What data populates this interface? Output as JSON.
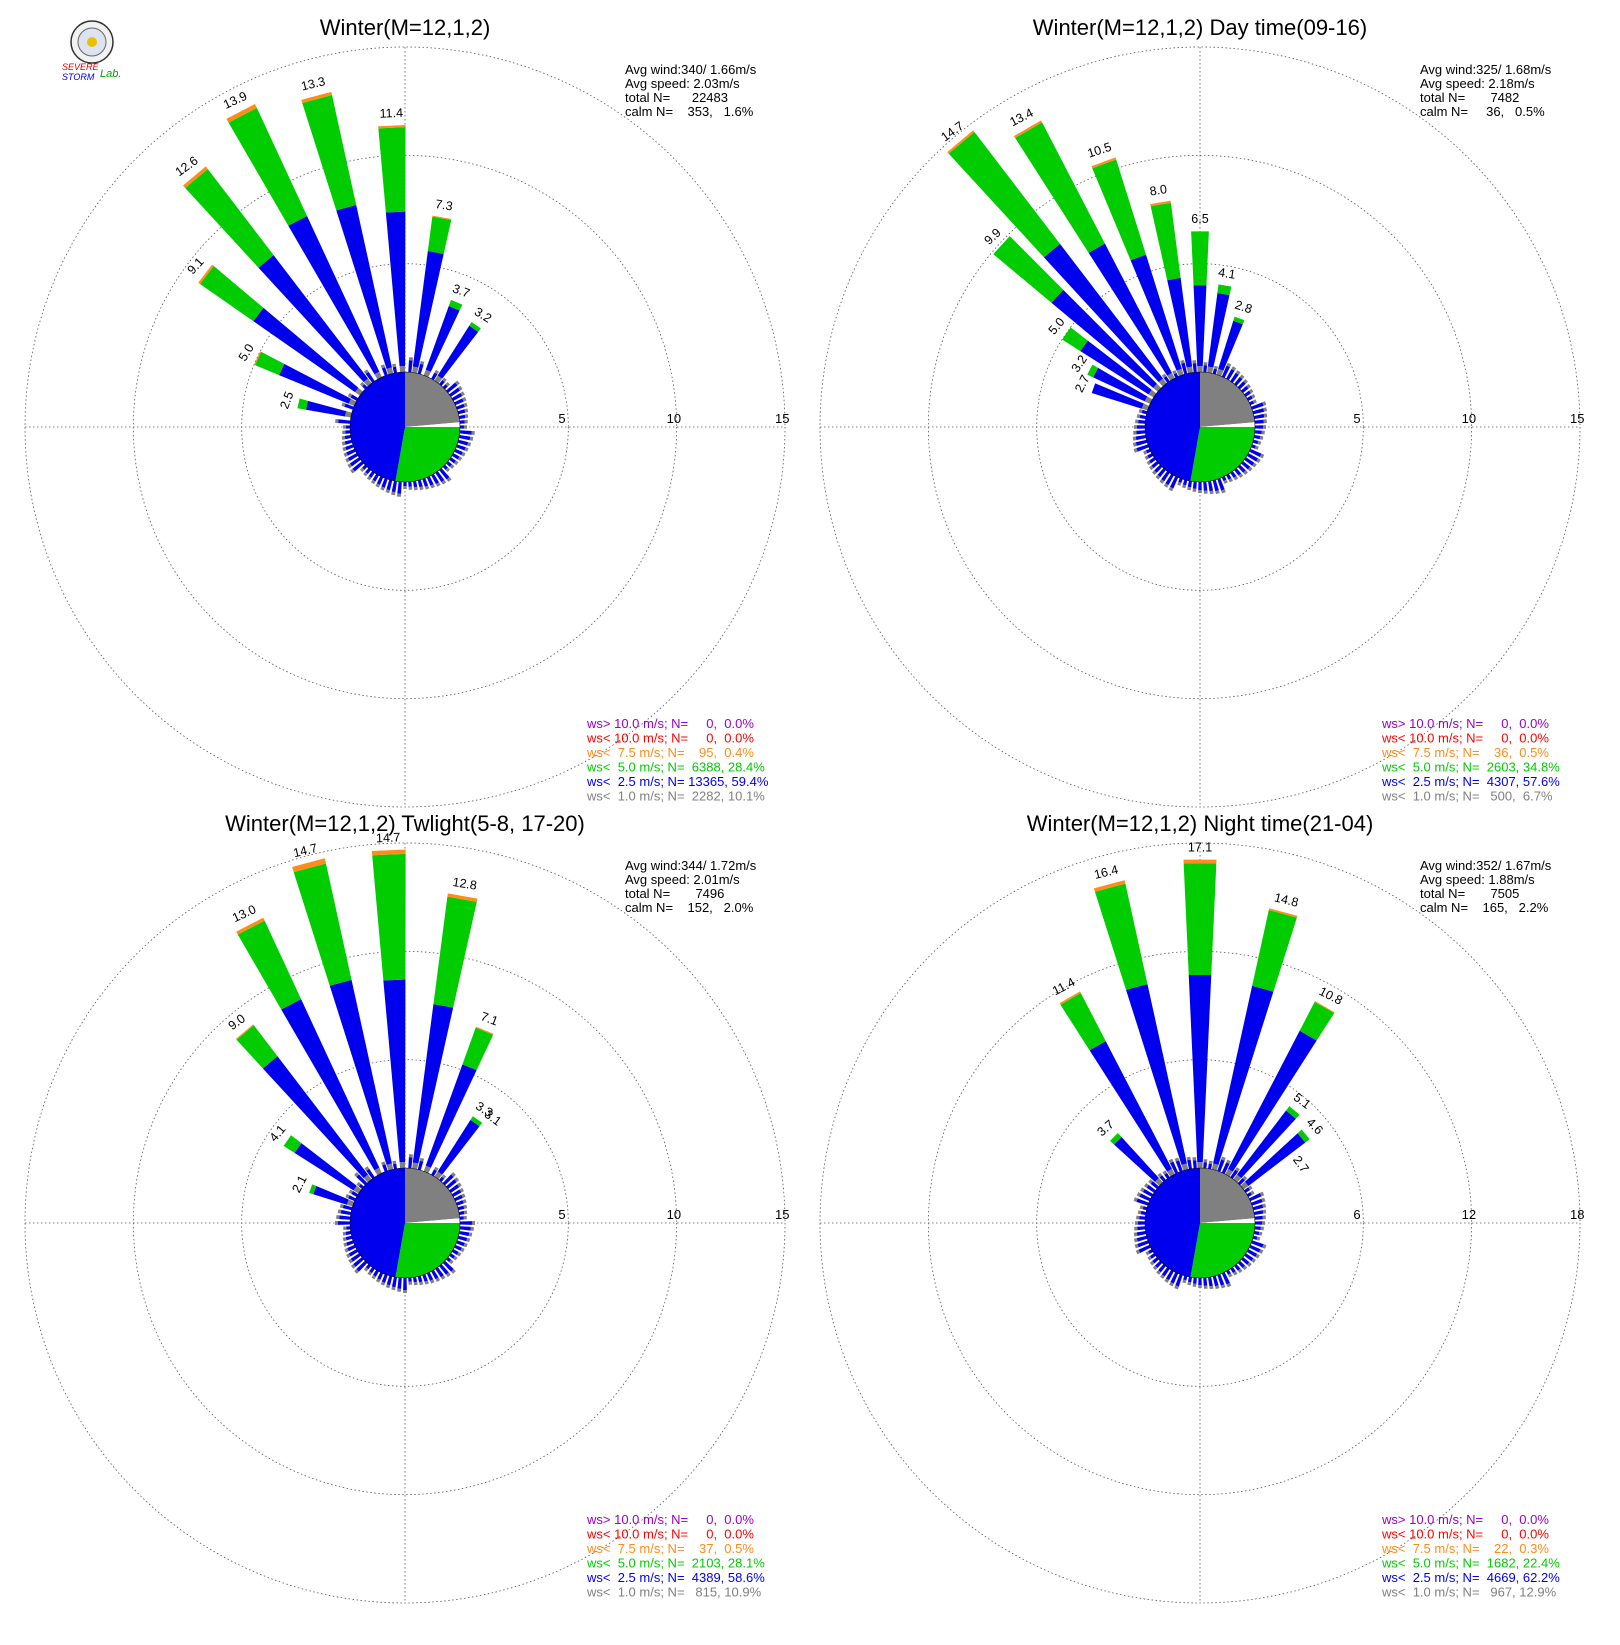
{
  "logo": {
    "top_text": "SEVERE",
    "bottom_text": "STORM",
    "lab_text": "Lab."
  },
  "colors": {
    "gt10": "#9900cc",
    "lt10": "#ff0000",
    "lt7_5": "#ff8c1a",
    "lt5": "#00cc00",
    "lt2_5": "#0000ee",
    "lt1": "#808080",
    "grid": "#555555"
  },
  "chart_data": [
    {
      "type": "windrose",
      "title": "Winter(M=12,1,2)",
      "stats": {
        "avg_wind": "Avg wind:340/ 1.66m/s",
        "avg_speed": "Avg speed: 2.03m/s",
        "total": "total N=      22483",
        "calm": "calm N=    353,   1.6%"
      },
      "rings": [
        5,
        10,
        15
      ],
      "ring_labels": [
        "5",
        "10",
        "15"
      ],
      "directions": [
        282.5,
        295,
        307.5,
        320,
        332.5,
        345,
        357.5,
        10,
        22.5,
        35
      ],
      "bars": [
        {
          "value": 2.5,
          "label": "2.5",
          "green": 0.4,
          "orange": 0.0
        },
        {
          "value": 5.0,
          "label": "5.0",
          "green": 1.2,
          "orange": 0.05
        },
        {
          "value": 9.1,
          "label": "9.1",
          "green": 3.0,
          "orange": 0.1
        },
        {
          "value": 12.6,
          "label": "12.6",
          "green": 5.0,
          "orange": 0.15
        },
        {
          "value": 13.9,
          "label": "13.9",
          "green": 5.5,
          "orange": 0.2
        },
        {
          "value": 13.3,
          "label": "13.3",
          "green": 5.2,
          "orange": 0.15
        },
        {
          "value": 11.4,
          "label": "11.4",
          "green": 3.9,
          "orange": 0.1
        },
        {
          "value": 7.3,
          "label": "7.3",
          "green": 1.6,
          "orange": 0.05
        },
        {
          "value": 3.7,
          "label": "3.7",
          "green": 0.3,
          "orange": 0.0
        },
        {
          "value": 3.2,
          "label": "3.2",
          "green": 0.2,
          "orange": 0.0
        }
      ],
      "legend": [
        {
          "text": "ws> 10.0 m/s; N=     0,  0.0%",
          "color": "#9900cc"
        },
        {
          "text": "ws< 10.0 m/s; N=     0,  0.0%",
          "color": "#ff0000"
        },
        {
          "text": "ws<  7.5 m/s; N=    95,  0.4%",
          "color": "#ff8c1a"
        },
        {
          "text": "ws<  5.0 m/s; N=  6388, 28.4%",
          "color": "#00cc00"
        },
        {
          "text": "ws<  2.5 m/s; N= 13365, 59.4%",
          "color": "#0000ee"
        },
        {
          "text": "ws<  1.0 m/s; N=  2282, 10.1%",
          "color": "#808080"
        }
      ]
    },
    {
      "type": "windrose",
      "title": "Winter(M=12,1,2) Day time(09-16)",
      "stats": {
        "avg_wind": "Avg wind:325/ 1.68m/s",
        "avg_speed": "Avg speed: 2.18m/s",
        "total": "total N=       7482",
        "calm": "calm N=     36,   0.5%"
      },
      "rings": [
        5,
        10,
        15
      ],
      "ring_labels": [
        "5",
        "10",
        "15"
      ],
      "directions": [
        290,
        297.5,
        305,
        312.5,
        320,
        330,
        340,
        350,
        0,
        10,
        20
      ],
      "bars": [
        {
          "value": 2.7,
          "label": "2.7",
          "green": 0.0,
          "orange": 0.0
        },
        {
          "value": 3.2,
          "label": "3.2",
          "green": 0.3,
          "orange": 0.0
        },
        {
          "value": 5.0,
          "label": "5.0",
          "green": 1.0,
          "orange": 0.0
        },
        {
          "value": 9.9,
          "label": "9.9",
          "green": 3.5,
          "orange": 0.0
        },
        {
          "value": 14.7,
          "label": "14.7",
          "green": 6.5,
          "orange": 0.1
        },
        {
          "value": 13.4,
          "label": "13.4",
          "green": 6.3,
          "orange": 0.1
        },
        {
          "value": 10.5,
          "label": "10.5",
          "green": 4.6,
          "orange": 0.1
        },
        {
          "value": 8.0,
          "label": "8.0",
          "green": 3.5,
          "orange": 0.1
        },
        {
          "value": 6.5,
          "label": "6.5",
          "green": 2.5,
          "orange": 0.0
        },
        {
          "value": 4.1,
          "label": "4.1",
          "green": 0.4,
          "orange": 0.0
        },
        {
          "value": 2.8,
          "label": "2.8",
          "green": 0.2,
          "orange": 0.0
        }
      ],
      "legend": [
        {
          "text": "ws> 10.0 m/s; N=     0,  0.0%",
          "color": "#9900cc"
        },
        {
          "text": "ws< 10.0 m/s; N=     0,  0.0%",
          "color": "#ff0000"
        },
        {
          "text": "ws<  7.5 m/s; N=    36,  0.5%",
          "color": "#ff8c1a"
        },
        {
          "text": "ws<  5.0 m/s; N=  2603, 34.8%",
          "color": "#00cc00"
        },
        {
          "text": "ws<  2.5 m/s; N=  4307, 57.6%",
          "color": "#0000ee"
        },
        {
          "text": "ws<  1.0 m/s; N=   500,  6.7%",
          "color": "#808080"
        }
      ]
    },
    {
      "type": "windrose",
      "title": "Winter(M=12,1,2) Twlight(5-8, 17-20)",
      "stats": {
        "avg_wind": "Avg wind:344/ 1.72m/s",
        "avg_speed": "Avg speed: 2.01m/s",
        "total": "total N=       7496",
        "calm": "calm N=    152,   2.0%"
      },
      "rings": [
        5,
        10,
        15
      ],
      "ring_labels": [
        "5",
        "10",
        "15"
      ],
      "directions": [
        290,
        305,
        320,
        332.5,
        345,
        357.5,
        10,
        22.5,
        35
      ],
      "bars": [
        {
          "value": 2.1,
          "label": "2.1",
          "green": 0.2,
          "orange": 0.0
        },
        {
          "value": 4.1,
          "label": "4.1",
          "green": 0.6,
          "orange": 0.0
        },
        {
          "value": 9.0,
          "label": "9.0",
          "green": 1.8,
          "orange": 0.05
        },
        {
          "value": 13.0,
          "label": "13.0",
          "green": 4.0,
          "orange": 0.15
        },
        {
          "value": 14.7,
          "label": "14.7",
          "green": 5.5,
          "orange": 0.25
        },
        {
          "value": 14.7,
          "label": "14.7",
          "green": 5.8,
          "orange": 0.2
        },
        {
          "value": 12.8,
          "label": "12.8",
          "green": 5.0,
          "orange": 0.15
        },
        {
          "value": 7.1,
          "label": "7.1",
          "green": 1.8,
          "orange": 0.05
        },
        {
          "value": 3.3,
          "label": "3.3",
          "green": 0.2,
          "orange": 0.0
        }
      ],
      "extra_labels": [
        {
          "text": "3.1",
          "angle": 40,
          "r": 3.6
        }
      ],
      "legend": [
        {
          "text": "ws> 10.0 m/s; N=     0,  0.0%",
          "color": "#9900cc"
        },
        {
          "text": "ws< 10.0 m/s; N=     0,  0.0%",
          "color": "#ff0000"
        },
        {
          "text": "ws<  7.5 m/s; N=    37,  0.5%",
          "color": "#ff8c1a"
        },
        {
          "text": "ws<  5.0 m/s; N=  2103, 28.1%",
          "color": "#00cc00"
        },
        {
          "text": "ws<  2.5 m/s; N=  4389, 58.6%",
          "color": "#0000ee"
        },
        {
          "text": "ws<  1.0 m/s; N=   815, 10.9%",
          "color": "#808080"
        }
      ]
    },
    {
      "type": "windrose",
      "title": "Winter(M=12,1,2) Night time(21-04)",
      "stats": {
        "avg_wind": "Avg wind:352/ 1.67m/s",
        "avg_speed": "Avg speed: 1.88m/s",
        "total": "total N=       7505",
        "calm": "calm N=    165,   2.2%"
      },
      "rings": [
        6,
        12,
        18
      ],
      "ring_labels": [
        "6",
        "12",
        "18"
      ],
      "directions": [
        315,
        330,
        345,
        0,
        15,
        30,
        40,
        50
      ],
      "bars": [
        {
          "value": 3.7,
          "label": "3.7",
          "green": 0.3,
          "orange": 0.0
        },
        {
          "value": 11.4,
          "label": "11.4",
          "green": 3.0,
          "orange": 0.1
        },
        {
          "value": 16.4,
          "label": "16.4",
          "green": 5.7,
          "orange": 0.2
        },
        {
          "value": 17.1,
          "label": "17.1",
          "green": 6.2,
          "orange": 0.2
        },
        {
          "value": 14.8,
          "label": "14.8",
          "green": 4.3,
          "orange": 0.1
        },
        {
          "value": 10.8,
          "label": "10.8",
          "green": 1.8,
          "orange": 0.05
        },
        {
          "value": 5.1,
          "label": "5.1",
          "green": 0.3,
          "orange": 0.0
        },
        {
          "value": 4.6,
          "label": "4.6",
          "green": 0.3,
          "orange": 0.0
        }
      ],
      "extra_labels": [
        {
          "text": "2.7",
          "angle": 60,
          "r": 3.2
        }
      ],
      "legend": [
        {
          "text": "ws> 10.0 m/s; N=     0,  0.0%",
          "color": "#9900cc"
        },
        {
          "text": "ws< 10.0 m/s; N=     0,  0.0%",
          "color": "#ff0000"
        },
        {
          "text": "ws<  7.5 m/s; N=    22,  0.3%",
          "color": "#ff8c1a"
        },
        {
          "text": "ws<  5.0 m/s; N=  1682, 22.4%",
          "color": "#00cc00"
        },
        {
          "text": "ws<  2.5 m/s; N=  4669, 62.2%",
          "color": "#0000ee"
        },
        {
          "text": "ws<  1.0 m/s; N=   967, 12.9%",
          "color": "#808080"
        }
      ]
    }
  ]
}
